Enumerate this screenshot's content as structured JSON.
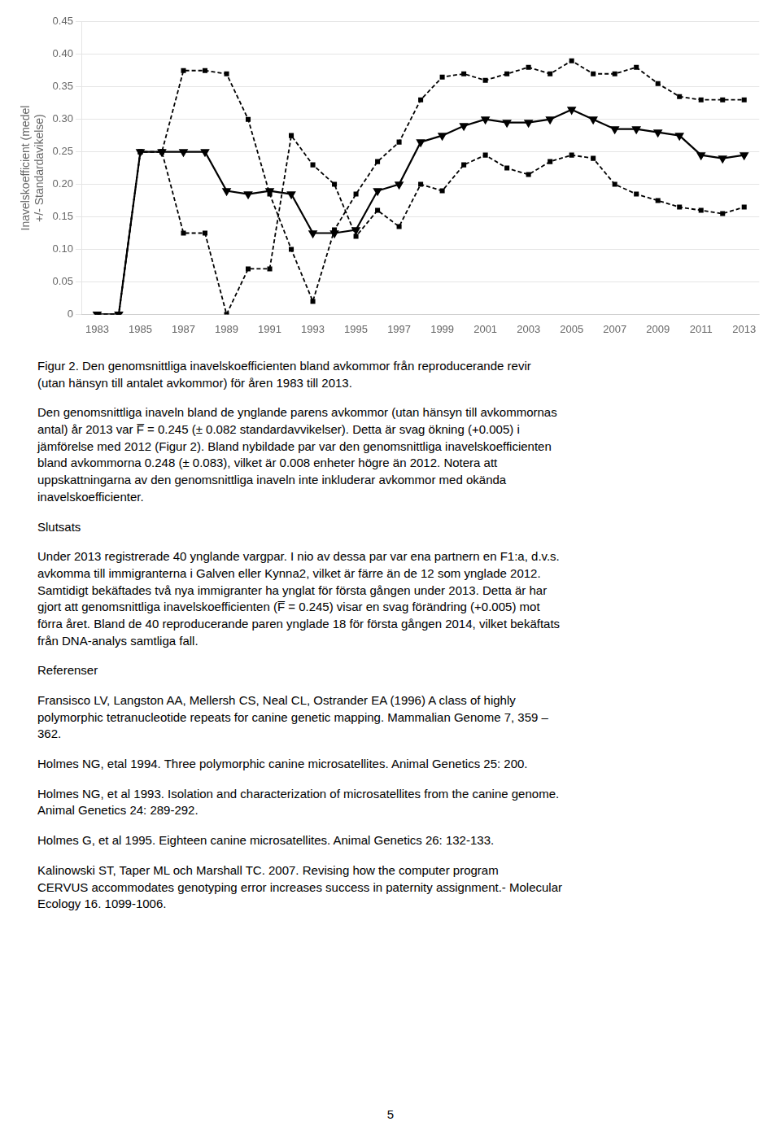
{
  "chart_data": {
    "type": "line",
    "ylabel": "Inavelskoefficient (medel\n+/- Standardavikelse)",
    "x": [
      1983,
      1984,
      1985,
      1986,
      1987,
      1988,
      1989,
      1990,
      1991,
      1992,
      1993,
      1994,
      1995,
      1996,
      1997,
      1998,
      1999,
      2000,
      2001,
      2002,
      2003,
      2004,
      2005,
      2006,
      2007,
      2008,
      2009,
      2010,
      2011,
      2012,
      2013
    ],
    "series": [
      {
        "color": "#000000",
        "line_style": "dashed",
        "marker": "square",
        "values": [
          0.0,
          0.0,
          0.25,
          0.25,
          0.375,
          0.375,
          0.37,
          0.3,
          0.185,
          0.1,
          0.02,
          0.13,
          0.185,
          0.235,
          0.265,
          0.33,
          0.365,
          0.37,
          0.36,
          0.37,
          0.38,
          0.37,
          0.39,
          0.37,
          0.37,
          0.38,
          0.355,
          0.335,
          0.33,
          0.33,
          0.33
        ]
      },
      {
        "color": "#000000",
        "line_style": "dashed",
        "marker": "square",
        "values": [
          0.0,
          0.0,
          0.25,
          0.25,
          0.125,
          0.125,
          0.0,
          0.07,
          0.07,
          0.275,
          0.23,
          0.2,
          0.12,
          0.16,
          0.135,
          0.2,
          0.19,
          0.23,
          0.245,
          0.225,
          0.215,
          0.235,
          0.245,
          0.24,
          0.2,
          0.185,
          0.175,
          0.165,
          0.16,
          0.155,
          0.165
        ]
      },
      {
        "color": "#000000",
        "line_style": "solid",
        "marker": "triangle-down",
        "values": [
          0.0,
          0.0,
          0.25,
          0.25,
          0.25,
          0.25,
          0.19,
          0.185,
          0.19,
          0.185,
          0.125,
          0.125,
          0.13,
          0.19,
          0.2,
          0.265,
          0.275,
          0.29,
          0.3,
          0.295,
          0.295,
          0.3,
          0.315,
          0.3,
          0.285,
          0.285,
          0.28,
          0.275,
          0.245,
          0.24,
          0.245
        ]
      }
    ],
    "xlim": [
      1982.3,
      2013.7
    ],
    "xticks": [
      1983,
      1985,
      1987,
      1989,
      1991,
      1993,
      1995,
      1997,
      1999,
      2001,
      2003,
      2005,
      2007,
      2009,
      2011,
      2013
    ],
    "ylim": [
      0,
      0.45
    ],
    "yticks": [
      0,
      0.05,
      {
        "value": 0.1,
        "label": "0.10"
      },
      0.15,
      {
        "value": 0.2,
        "label": "0.20"
      },
      0.25,
      {
        "value": 0.3,
        "label": "0.30"
      },
      0.35,
      {
        "value": 0.4,
        "label": "0.40"
      },
      0.45
    ],
    "grid": "y",
    "annotations": [
      "Figur 2. Den genomsnittliga inavelskoefficienten bland avkommor från reproducerande revir\n(utan hänsyn till antalet avkommor) för åren 1983 till 2013.",
      "Den genomsnittliga inaveln bland de ynglande parens avkommor (utan hänsyn till avkommornas\nantal) år 2013 var F̅ = 0.245 (± 0.082 standardavvikelser). Detta är svag ökning (+0.005) i\njämförelse med 2012 (Figur 2). Bland nybildade par var den genomsnittliga inavelskoefficienten\nbland avkommorna 0.248 (± 0.083), vilket är 0.008 enheter högre än 2012. Notera att\nuppskattningarna av den genomsnittliga inaveln inte inkluderar avkommor med okända\ninavelskoefficienter.",
      "Slutsats",
      "Under 2013 registrerade 40 ynglande vargpar. I nio av dessa par var ena partnern en F1:a, d.v.s.\navkomma till immigranterna i Galven eller Kynna2, vilket är färre än de 12 som ynglade 2012.\nSamtidigt bekäftades två nya immigranter ha ynglat för första gången under 2013. Detta är har\ngjort att genomsnittliga inavelskoefficienten (F̅ = 0.245) visar en svag förändring (+0.005) mot\nförra året. Bland de 40 reproducerande paren ynglade 18 för första gången 2014, vilket bekäftats\nfrån DNA-analys samtliga fall.",
      "Referenser",
      "Fransisco LV, Langston AA, Mellersh CS, Neal CL, Ostrander EA (1996) A class of highly\npolymorphic tetranucleotide repeats for canine genetic mapping. Mammalian Genome 7, 359 –\n362.",
      "Holmes NG, etal 1994. Three polymorphic canine microsatellites. Animal Genetics 25: 200.",
      "Holmes NG, et al 1993. Isolation and characterization of microsatellites from the canine genome.\nAnimal Genetics 24: 289-292.",
      "Holmes G, et al 1995. Eighteen canine microsatellites. Animal Genetics 26: 132-133.",
      "Kalinowski ST, Taper ML och Marshall TC. 2007. Revising how the computer program\nCERVUS accommodates genotyping error increases success in paternity assignment.- Molecular\nEcology 16. 1099-1006.",
      "5"
    ]
  }
}
